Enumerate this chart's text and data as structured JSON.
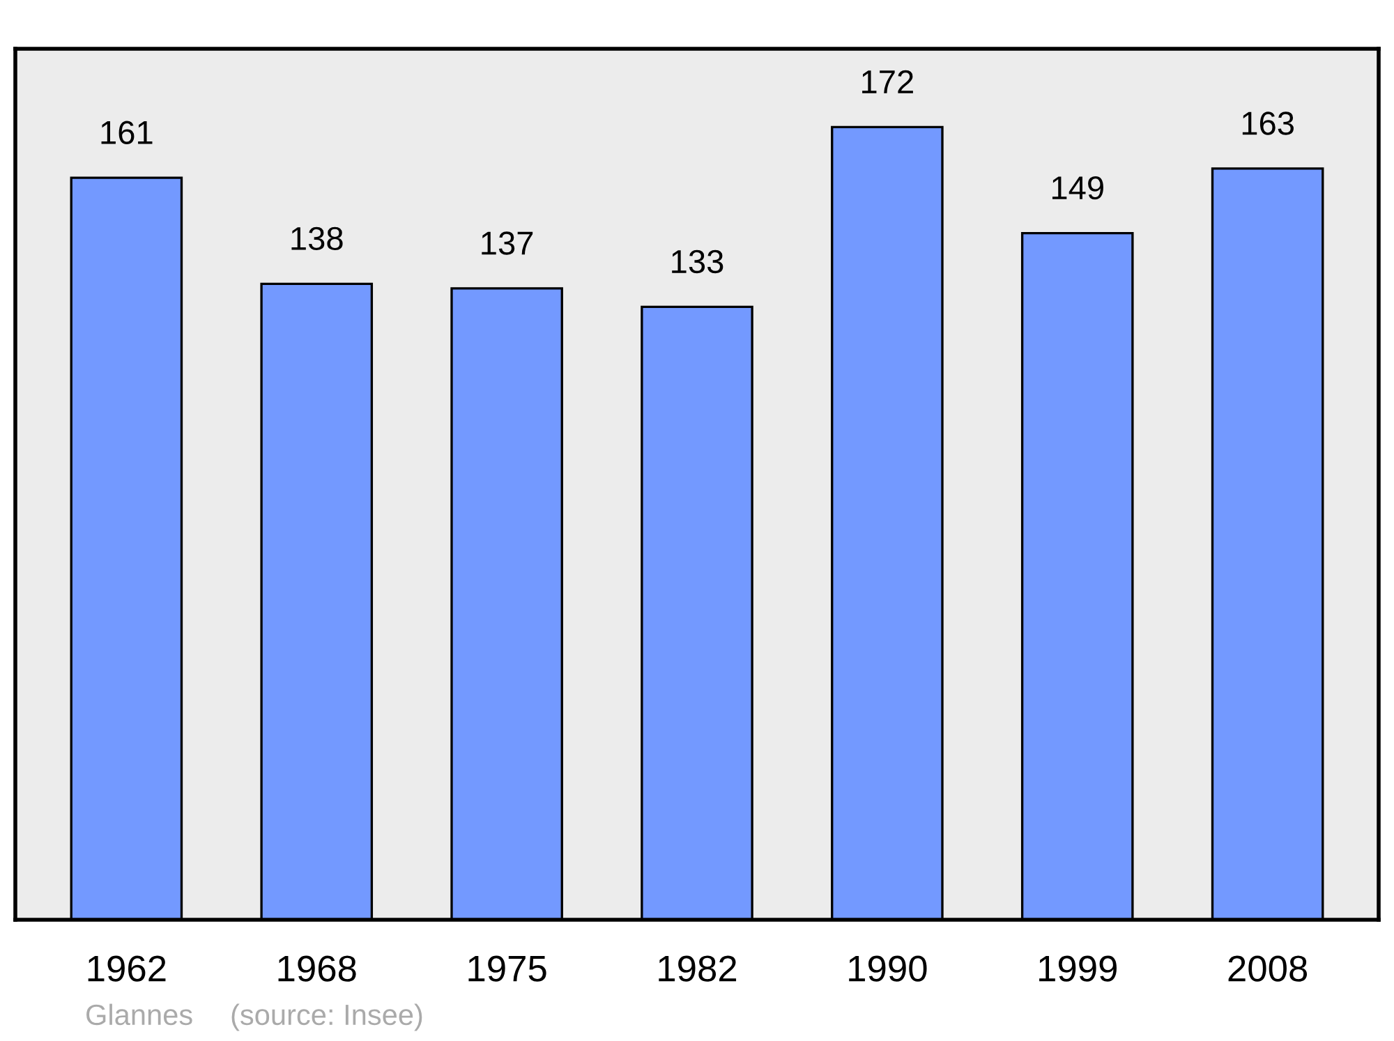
{
  "chart_data": {
    "type": "bar",
    "categories": [
      "1962",
      "1968",
      "1975",
      "1982",
      "1990",
      "1999",
      "2008"
    ],
    "values": [
      161,
      138,
      137,
      133,
      172,
      149,
      163
    ],
    "color": "#7399ff",
    "ylim": [
      0,
      189
    ],
    "data_labels": true,
    "grid": false,
    "legend": false,
    "tick_labels": "x",
    "annotations": [
      "Glannes",
      "(source: Insee)"
    ]
  }
}
